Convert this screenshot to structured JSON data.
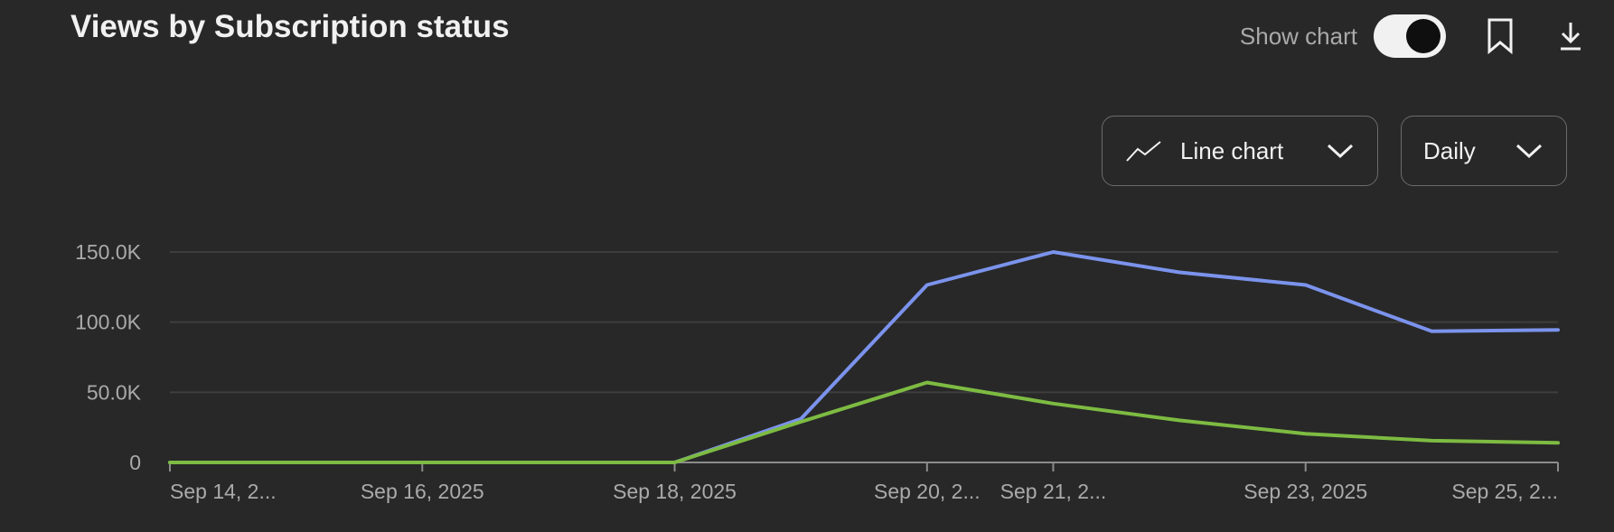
{
  "header": {
    "title": "Views by Subscription status",
    "show_chart_label": "Show chart",
    "show_chart_on": true,
    "bookmark_icon": "bookmark-icon",
    "download_icon": "download-icon"
  },
  "controls": {
    "chart_type": {
      "label": "Line chart",
      "icon": "line-chart-icon",
      "chevron": "chevron-down-icon"
    },
    "interval": {
      "label": "Daily",
      "chevron": "chevron-down-icon"
    }
  },
  "colors": {
    "background": "#282828",
    "grid": "#3e3e3e",
    "axis": "#8c8c8c",
    "series_blue": "#7b93ec",
    "series_green": "#7dbb42"
  },
  "chart_data": {
    "type": "line",
    "x": [
      "Sep 14, 2025",
      "Sep 15, 2025",
      "Sep 16, 2025",
      "Sep 17, 2025",
      "Sep 18, 2025",
      "Sep 19, 2025",
      "Sep 20, 2025",
      "Sep 21, 2025",
      "Sep 22, 2025",
      "Sep 23, 2025",
      "Sep 24, 2025",
      "Sep 25, 2025"
    ],
    "x_tick_labels": [
      {
        "index": 0,
        "label": "Sep 14, 2..."
      },
      {
        "index": 2,
        "label": "Sep 16, 2025"
      },
      {
        "index": 4,
        "label": "Sep 18, 2025"
      },
      {
        "index": 6,
        "label": "Sep 20, 2..."
      },
      {
        "index": 7,
        "label": "Sep 21, 2..."
      },
      {
        "index": 9,
        "label": "Sep 23, 2025"
      },
      {
        "index": 11,
        "label": "Sep 25, 2..."
      }
    ],
    "y_ticks": [
      {
        "value": 0,
        "label": "0"
      },
      {
        "value": 50000,
        "label": "50.0K"
      },
      {
        "value": 100000,
        "label": "100.0K"
      },
      {
        "value": 150000,
        "label": "150.0K"
      }
    ],
    "ylim": [
      0,
      150000
    ],
    "grid": true,
    "series": [
      {
        "color": "#7b93ec",
        "values": [
          0,
          0,
          0,
          0,
          0,
          31000,
          126500,
          150000,
          135500,
          126500,
          93500,
          94500
        ]
      },
      {
        "color": "#7dbb42",
        "values": [
          0,
          0,
          0,
          0,
          0,
          29000,
          57000,
          42000,
          30000,
          20500,
          15500,
          14000
        ]
      }
    ]
  }
}
